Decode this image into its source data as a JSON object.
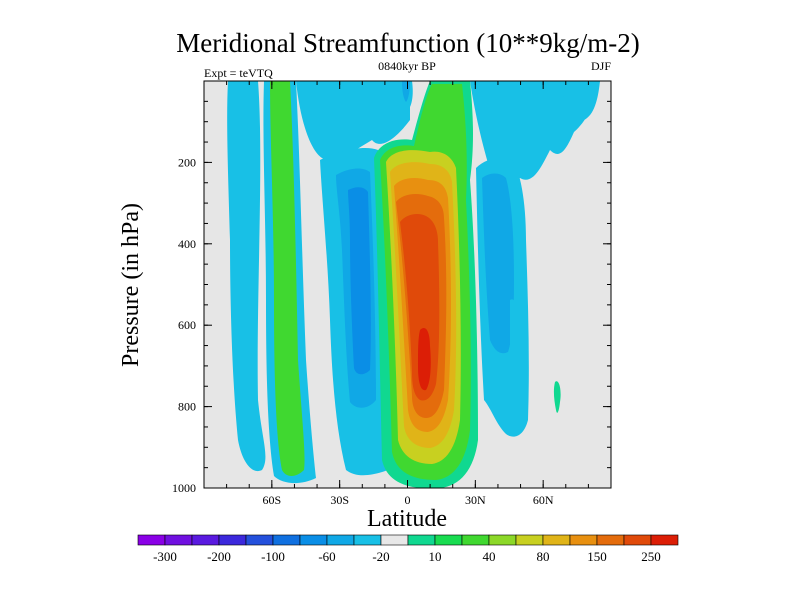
{
  "chart_data": {
    "type": "heatmap",
    "title": "Meridional Streamfunction (10**9kg/m-2)",
    "subtitle_left": "Expt = teVTQ",
    "subtitle_center": "0840kyr BP",
    "subtitle_right": "DJF",
    "xlabel": "Latitude",
    "ylabel": "Pressure (in hPa)",
    "xlim": [
      -90,
      90
    ],
    "ylim": [
      1000,
      0
    ],
    "x_ticks": [
      {
        "value": -60,
        "label": "60S"
      },
      {
        "value": -30,
        "label": "30S"
      },
      {
        "value": 0,
        "label": "0"
      },
      {
        "value": 30,
        "label": "30N"
      },
      {
        "value": 60,
        "label": "60N"
      }
    ],
    "y_ticks": [
      {
        "value": 200,
        "label": "200"
      },
      {
        "value": 400,
        "label": "400"
      },
      {
        "value": 600,
        "label": "600"
      },
      {
        "value": 800,
        "label": "800"
      },
      {
        "value": 1000,
        "label": "1000"
      }
    ],
    "colorbar": {
      "colors": [
        "#8a00e6",
        "#7010e0",
        "#5a1ae0",
        "#3c28dc",
        "#2450dc",
        "#1070e0",
        "#0a8ee6",
        "#10a8e6",
        "#18c0e6",
        "#e8e8e8",
        "#10d890",
        "#18dc50",
        "#40d830",
        "#8cd828",
        "#c8d020",
        "#e0b418",
        "#e89010",
        "#e46c0c",
        "#e04a0a",
        "#dc1e06"
      ],
      "labels": [
        "-300",
        "-200",
        "-100",
        "-60",
        "-20",
        "10",
        "40",
        "80",
        "150",
        "250"
      ]
    },
    "field_features": [
      {
        "name": "SH polar cell",
        "lat": -75,
        "pressure_range": [
          0,
          960
        ],
        "level": 6
      },
      {
        "name": "SH Ferrel cell",
        "lat": -57,
        "pressure_range": [
          0,
          980
        ],
        "level": 11
      },
      {
        "name": "SH Hadley return",
        "lat": -22,
        "pressure_range": [
          150,
          960
        ],
        "level": 6
      },
      {
        "name": "Hadley cell core",
        "lat": 8,
        "pressure_range": [
          100,
          980
        ],
        "level": 19
      },
      {
        "name": "NH Ferrel cell",
        "lat": 38,
        "pressure_range": [
          150,
          870
        ],
        "level": 6
      },
      {
        "name": "NH upper cell",
        "lat": 65,
        "pressure_range": [
          0,
          150
        ],
        "level": 8
      }
    ]
  }
}
